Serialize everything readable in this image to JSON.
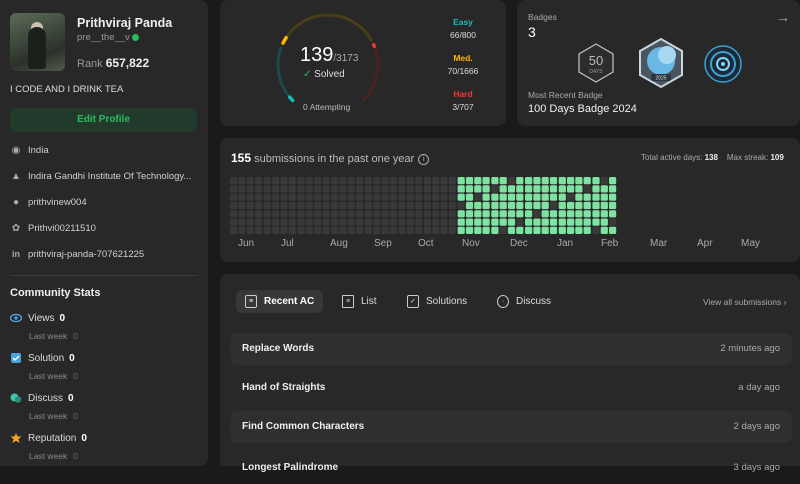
{
  "profile": {
    "name": "Prithviraj Panda",
    "handle": "pre__the__v",
    "rank_label": "Rank",
    "rank_value": "657,822",
    "bio": "I CODE AND I DRINK TEA",
    "edit_button": "Edit Profile",
    "info": [
      {
        "icon": "location-icon",
        "text": "India"
      },
      {
        "icon": "graduation-cap-icon",
        "text": "Indira Gandhi Institute Of Technology..."
      },
      {
        "icon": "github-icon",
        "text": "prithvinew004"
      },
      {
        "icon": "twitter-icon",
        "text": "Prithvi00211510"
      },
      {
        "icon": "linkedin-icon",
        "text": "prithviraj-panda-707621225"
      }
    ]
  },
  "community": {
    "title": "Community Stats",
    "items": [
      {
        "icon": "eye-icon",
        "label": "Views",
        "value": "0",
        "sub": "Last week",
        "sub_value": "0",
        "color": "#4aa3df"
      },
      {
        "icon": "check-square-icon",
        "label": "Solution",
        "value": "0",
        "sub": "Last week",
        "sub_value": "0",
        "color": "#4aa3df"
      },
      {
        "icon": "discuss-icon",
        "label": "Discuss",
        "value": "0",
        "sub": "Last week",
        "sub_value": "0",
        "color": "#3ec6b0"
      },
      {
        "icon": "star-icon",
        "label": "Reputation",
        "value": "0",
        "sub": "Last week",
        "sub_value": "0",
        "color": "#f5a623"
      }
    ]
  },
  "progress": {
    "solved": "139",
    "total": "/3173",
    "solved_label": "Solved",
    "attempting": "0 Attempting",
    "solved_fraction": 0.0438,
    "easy": {
      "label": "Easy",
      "value": "66/800",
      "color": "#1cbaba"
    },
    "medium": {
      "label": "Med.",
      "value": "70/1666",
      "color": "#ffb700"
    },
    "hard": {
      "label": "Hard",
      "value": "3/707",
      "color": "#f63737"
    }
  },
  "badges": {
    "label": "Badges",
    "count": "3",
    "recent_label": "Most Recent Badge",
    "recent_name": "100 Days Badge 2024",
    "badge_icons": [
      "50-days-badge-icon",
      "100-days-badge-icon",
      "annual-badge-icon"
    ],
    "badge_texts": [
      "50",
      "DAYS",
      "2025"
    ]
  },
  "heatmap": {
    "count": "155",
    "text": "submissions in the past one year",
    "active_days_label": "Total active days:",
    "active_days": "138",
    "max_streak_label": "Max streak:",
    "max_streak": "109",
    "months": [
      "Jun",
      "Jul",
      "Aug",
      "Sep",
      "Oct",
      "Nov",
      "Dec",
      "Jan",
      "Feb",
      "Mar",
      "Apr",
      "May"
    ],
    "active_from_month_index": 7,
    "colors": {
      "empty": "#393939",
      "active": "#7ee2a0"
    }
  },
  "recent": {
    "tabs": [
      {
        "icon": "recent-ac-icon",
        "label": "Recent AC"
      },
      {
        "icon": "list-icon",
        "label": "List"
      },
      {
        "icon": "solutions-icon",
        "label": "Solutions"
      },
      {
        "icon": "discuss-icon",
        "label": "Discuss"
      }
    ],
    "view_all": "View all submissions",
    "rows": [
      {
        "title": "Replace Words",
        "time": "2 minutes ago"
      },
      {
        "title": "Hand of Straights",
        "time": "a day ago"
      },
      {
        "title": "Find Common Characters",
        "time": "2 days ago"
      },
      {
        "title": "Longest Palindrome",
        "time": "3 days ago"
      }
    ]
  }
}
